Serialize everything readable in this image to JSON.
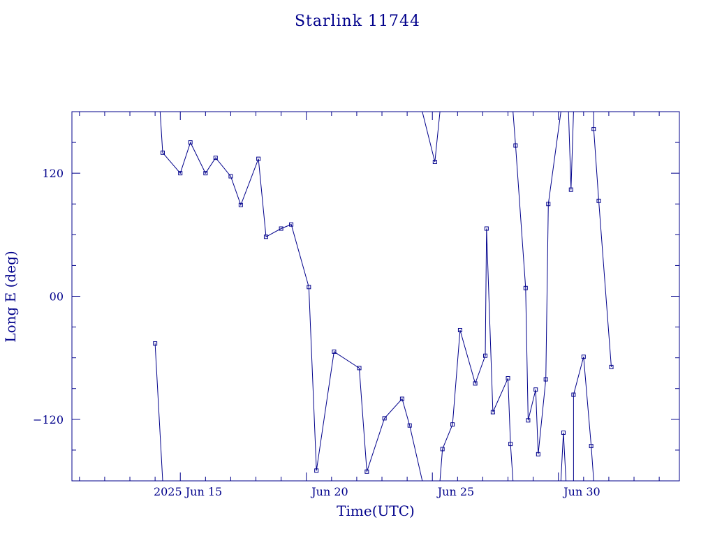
{
  "chart_data": {
    "type": "line",
    "title": "Starlink 11744",
    "xlabel": "Time(UTC)",
    "ylabel": "Long E (deg)",
    "x_tick_labels": [
      "2025 Jun 15",
      "Jun 20",
      "Jun 25",
      "Jun 30"
    ],
    "x_tick_values": [
      15,
      20,
      25,
      30
    ],
    "y_tick_labels": [
      "120",
      "00",
      "−120"
    ],
    "y_tick_values": [
      120,
      0,
      -120
    ],
    "xlim": [
      10.7,
      34.8
    ],
    "ylim": [
      -180,
      180
    ],
    "grid": false,
    "color": "#00008b",
    "series": [
      {
        "points": [
          [
            14.0,
            -46
          ],
          [
            14.3,
            -180
          ],
          [
            14.3,
            -180
          ]
        ]
      },
      {
        "points": [
          [
            14.2,
            180
          ],
          [
            14.3,
            140
          ],
          [
            15.0,
            120
          ],
          [
            15.4,
            150
          ],
          [
            16.0,
            120
          ],
          [
            16.4,
            135
          ],
          [
            17.0,
            117
          ],
          [
            17.4,
            89
          ],
          [
            18.1,
            134
          ],
          [
            18.4,
            58
          ],
          [
            19.0,
            66
          ],
          [
            19.4,
            70
          ],
          [
            20.1,
            9
          ],
          [
            20.4,
            -170
          ],
          [
            21.1,
            -54
          ],
          [
            22.1,
            -70
          ],
          [
            22.4,
            -171
          ],
          [
            23.1,
            -119
          ],
          [
            23.8,
            -100
          ],
          [
            24.1,
            -126
          ],
          [
            24.6,
            -180
          ]
        ]
      },
      {
        "points": [
          [
            24.6,
            180
          ],
          [
            25.1,
            131
          ],
          [
            25.3,
            180
          ]
        ]
      },
      {
        "points": [
          [
            25.3,
            -180
          ],
          [
            25.4,
            -149
          ],
          [
            25.8,
            -125
          ],
          [
            26.1,
            -33
          ],
          [
            26.7,
            -85
          ],
          [
            27.1,
            -58
          ],
          [
            27.15,
            66
          ],
          [
            27.4,
            -113
          ],
          [
            28.0,
            -80
          ],
          [
            28.1,
            -144
          ],
          [
            28.2,
            -180
          ]
        ]
      },
      {
        "points": [
          [
            28.2,
            180
          ],
          [
            28.3,
            147
          ],
          [
            28.7,
            8
          ],
          [
            28.8,
            -121
          ],
          [
            29.1,
            -91
          ],
          [
            29.2,
            -154
          ],
          [
            29.5,
            -81
          ],
          [
            29.6,
            90
          ],
          [
            30.1,
            180
          ]
        ]
      },
      {
        "points": [
          [
            30.1,
            -180
          ],
          [
            30.2,
            -133
          ],
          [
            30.3,
            -180
          ]
        ]
      },
      {
        "points": [
          [
            30.3,
            180
          ],
          [
            30.4,
            180
          ],
          [
            30.5,
            104
          ],
          [
            30.6,
            180
          ]
        ]
      },
      {
        "points": [
          [
            30.6,
            -180
          ],
          [
            30.6,
            -96
          ],
          [
            31.0,
            -59
          ],
          [
            31.3,
            -146
          ],
          [
            31.4,
            -180
          ]
        ]
      },
      {
        "points": [
          [
            31.4,
            180
          ],
          [
            31.4,
            163
          ],
          [
            31.6,
            93
          ],
          [
            32.1,
            -69
          ]
        ]
      }
    ]
  }
}
